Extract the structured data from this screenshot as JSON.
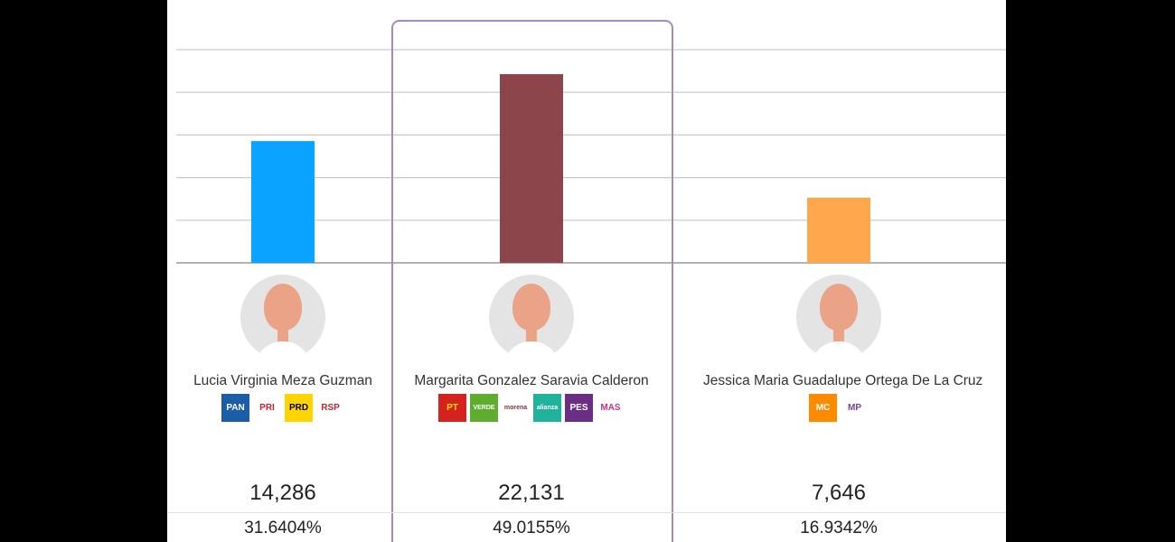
{
  "chart_data": {
    "type": "bar",
    "categories": [
      "Lucia Virginia Meza Guzman",
      "Margarita Gonzalez Saravia Calderon",
      "Jessica Maria Guadalupe Ortega De La Cruz"
    ],
    "values": [
      14286,
      22131,
      7646
    ],
    "percentages": [
      "31.6404%",
      "49.0155%",
      "16.9342%"
    ],
    "vote_labels": [
      "14,286",
      "22,131",
      "7,646"
    ],
    "colors": [
      "#0aa3ff",
      "#8c464b",
      "#ffa74d"
    ],
    "ylim": [
      0,
      25000
    ],
    "grid": true,
    "highlighted_index": 1
  },
  "candidates": [
    {
      "name": "Lucia Virginia Meza Guzman",
      "votes": "14,286",
      "percent": "31.6404%",
      "logos": [
        {
          "icon": "pan-logo-icon",
          "text": "PAN",
          "bg": "#1c5da8",
          "fg": "#ffffff"
        },
        {
          "icon": "pri-logo-icon",
          "text": "PRI",
          "bg": "#ffffff",
          "fg": "#d4202c"
        },
        {
          "icon": "prd-logo-icon",
          "text": "PRD",
          "bg": "#ffd400",
          "fg": "#000000"
        },
        {
          "icon": "rsp-logo-icon",
          "text": "RSP",
          "bg": "#ffffff",
          "fg": "#c0272d"
        }
      ]
    },
    {
      "name": "Margarita Gonzalez Saravia Calderon",
      "votes": "22,131",
      "percent": "49.0155%",
      "logos": [
        {
          "icon": "pt-logo-icon",
          "text": "PT",
          "bg": "#d6221f",
          "fg": "#ffe000"
        },
        {
          "icon": "verde-logo-icon",
          "text": "VERDE",
          "bg": "#5fad2f",
          "fg": "#ffffff"
        },
        {
          "icon": "morena-logo-icon",
          "text": "morena",
          "bg": "#ffffff",
          "fg": "#8c2b37"
        },
        {
          "icon": "alianza-logo-icon",
          "text": "alianza",
          "bg": "#21b29b",
          "fg": "#ffffff"
        },
        {
          "icon": "pes-logo-icon",
          "text": "PES",
          "bg": "#6b2e84",
          "fg": "#ffffff"
        },
        {
          "icon": "mas-logo-icon",
          "text": "MAS",
          "bg": "#ffffff",
          "fg": "#d0308f"
        }
      ]
    },
    {
      "name": "Jessica Maria Guadalupe Ortega De La Cruz",
      "votes": "7,646",
      "percent": "16.9342%",
      "logos": [
        {
          "icon": "movimiento-ciudadano-logo-icon",
          "text": "MC",
          "bg": "#ff8a00",
          "fg": "#ffffff"
        },
        {
          "icon": "morelos-progresa-logo-icon",
          "text": "MP",
          "bg": "#ffffff",
          "fg": "#7a3fa0"
        }
      ]
    }
  ]
}
